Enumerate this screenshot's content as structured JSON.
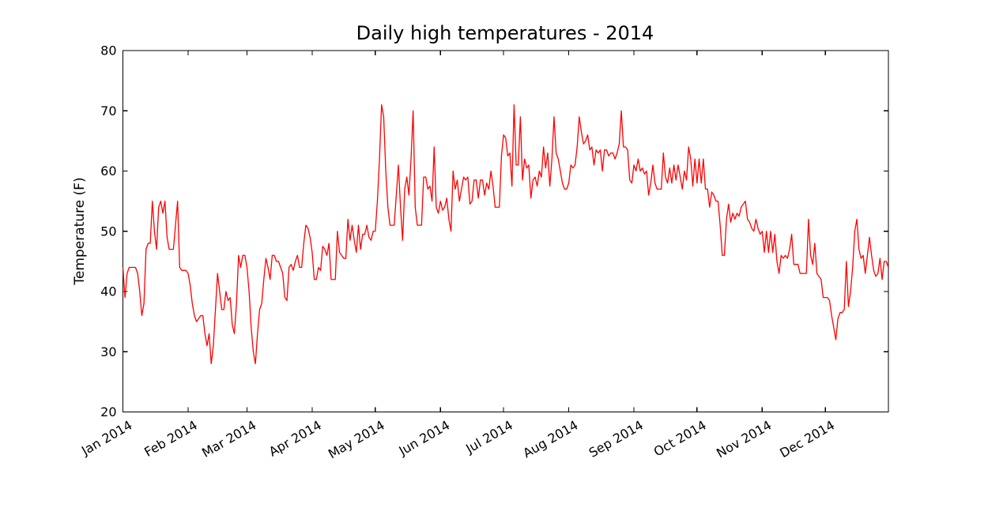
{
  "figure": {
    "background": "#ffffff",
    "frame_color": "#000000"
  },
  "chart_data": {
    "type": "line",
    "title": "Daily high temperatures - 2014",
    "xlabel": "",
    "ylabel": "Temperature (F)",
    "ylim": [
      20,
      80
    ],
    "yticks": [
      20,
      30,
      40,
      50,
      60,
      70,
      80
    ],
    "x_unit": "day_of_year",
    "x_range_days": [
      1,
      365
    ],
    "xtick_days": [
      1,
      32,
      60,
      91,
      121,
      152,
      182,
      213,
      244,
      274,
      305,
      335
    ],
    "xtick_labels": [
      "Jan 2014",
      "Feb 2014",
      "Mar 2014",
      "Apr 2014",
      "May 2014",
      "Jun 2014",
      "Jul 2014",
      "Aug 2014",
      "Sep 2014",
      "Oct 2014",
      "Nov 2014",
      "Dec 2014"
    ],
    "xtick_rotation_deg": -30,
    "grid": false,
    "legend_position": "none",
    "series": [
      {
        "name": "daily-high-temperature",
        "color": "#ff0000",
        "line_width": 1.3,
        "values": [
          44,
          39,
          43,
          44,
          44,
          44,
          44,
          43,
          40,
          36,
          38,
          47,
          48,
          48,
          55,
          50,
          47,
          54,
          55,
          53,
          55,
          49,
          47,
          47,
          47,
          51,
          55,
          44,
          43.5,
          43.5,
          43.5,
          43,
          41,
          38,
          36,
          35,
          35.5,
          36,
          36,
          33,
          31,
          33,
          28,
          31,
          37,
          43,
          40,
          37,
          37,
          40,
          38.5,
          39,
          34.5,
          33,
          38,
          46,
          44,
          46,
          46,
          44,
          40,
          34,
          30,
          28,
          33,
          37,
          38,
          42,
          45.5,
          44,
          42,
          46,
          46,
          45,
          45,
          44,
          43,
          39,
          38.5,
          44,
          44.5,
          43.5,
          45,
          46,
          44,
          44,
          48,
          51,
          50.5,
          49,
          46.5,
          42,
          42,
          44,
          43.5,
          47.5,
          47,
          46,
          48,
          42,
          42,
          42,
          50,
          46.5,
          46,
          45.5,
          45.5,
          52,
          48.5,
          51,
          48.5,
          46.5,
          51,
          47,
          49.5,
          49.5,
          51,
          49,
          48.5,
          50,
          50,
          55,
          62,
          71,
          69,
          60,
          54,
          51,
          51,
          51,
          56,
          61,
          54,
          48.5,
          57,
          59,
          56,
          62,
          70,
          54,
          51,
          51,
          51,
          59,
          59,
          57,
          57.5,
          55,
          64,
          54,
          53,
          55,
          53.5,
          54,
          55.5,
          52,
          50,
          60,
          57,
          58.5,
          55,
          57,
          59,
          58.5,
          59,
          54.5,
          55,
          58.5,
          58.5,
          55.5,
          58.5,
          58.5,
          56,
          58,
          57,
          60,
          57.5,
          54,
          54,
          54,
          62.5,
          66,
          65.5,
          62.5,
          63,
          57.5,
          71,
          61,
          61,
          69,
          58.5,
          62,
          60.5,
          61,
          55.5,
          58.5,
          59,
          57.5,
          60,
          59,
          64,
          60.5,
          63,
          57.5,
          62,
          69,
          63,
          62,
          60,
          58,
          57,
          57,
          58,
          61,
          60.5,
          61,
          64,
          69,
          66.5,
          64.5,
          65,
          66,
          63.5,
          64,
          61,
          63.5,
          63,
          63.5,
          60,
          63.5,
          63.5,
          62.5,
          63,
          63,
          62,
          63,
          64.5,
          70,
          64,
          64,
          63.5,
          58.5,
          58,
          61,
          60,
          62,
          60,
          60.5,
          59.5,
          60,
          56,
          58,
          61,
          58,
          57,
          57,
          57,
          63,
          59,
          58,
          60.5,
          58,
          61,
          58.5,
          61,
          59,
          57,
          60,
          58.5,
          64,
          62,
          57.5,
          62,
          58,
          62,
          58,
          62,
          57,
          57,
          54,
          56.5,
          56,
          55,
          55,
          51,
          46,
          46,
          52,
          54.5,
          51.5,
          53,
          52,
          53,
          52.5,
          54,
          54.5,
          55,
          52,
          51.5,
          50.5,
          50,
          52,
          50.5,
          49.5,
          50,
          46.5,
          50,
          46.5,
          50,
          46.5,
          49.5,
          45,
          43,
          46,
          45.5,
          46,
          45.5,
          47,
          49.5,
          44.5,
          44.5,
          44.5,
          43,
          43,
          43,
          43,
          52,
          46,
          44.5,
          48,
          43,
          42.5,
          42,
          39,
          39,
          39,
          38.5,
          36,
          34,
          32,
          35.5,
          36.5,
          36.5,
          37,
          45,
          37.5,
          40,
          44,
          50,
          52,
          47,
          45.5,
          46,
          43,
          46,
          49,
          46,
          43.5,
          42.5,
          43,
          45.5,
          42,
          45,
          45,
          44
        ]
      }
    ]
  }
}
